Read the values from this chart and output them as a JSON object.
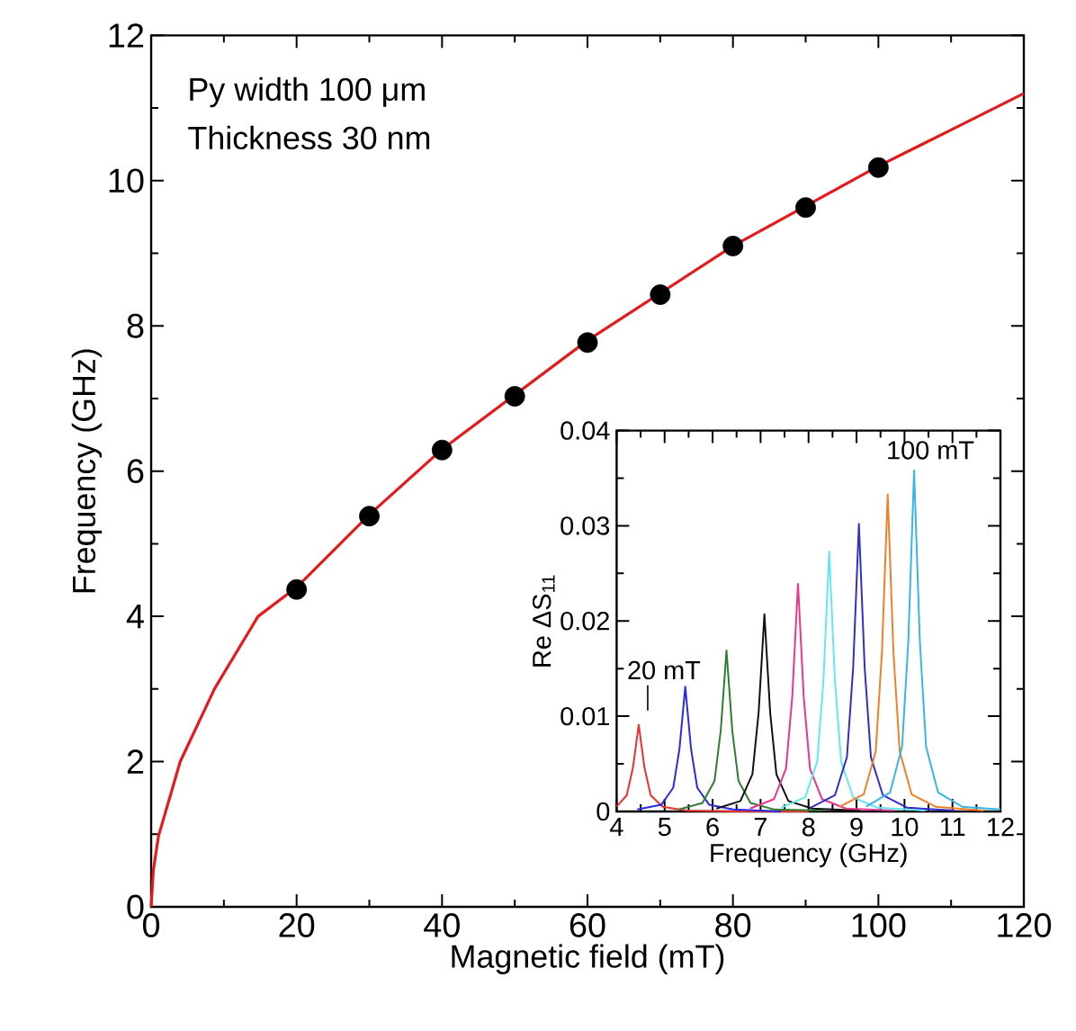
{
  "chart_data": [
    {
      "type": "scatter",
      "xlabel": "Magnetic field (mT)",
      "ylabel": "Frequency (GHz)",
      "xlim": [
        0,
        120
      ],
      "ylim": [
        0,
        12
      ],
      "xticks": [
        0,
        20,
        40,
        60,
        80,
        100,
        120
      ],
      "yticks": [
        0,
        2,
        4,
        6,
        8,
        10,
        12
      ],
      "annotations": [
        "Py width 100 μm",
        "Thickness 30 nm"
      ],
      "series": [
        {
          "type": "line",
          "color": "#e41a1c",
          "line_style": "solid",
          "marker": "none",
          "x": [
            0,
            0.3,
            1,
            4,
            8.7,
            14.7,
            20,
            30,
            40,
            50,
            60,
            80,
            100,
            110,
            120
          ],
          "values": [
            0,
            0.5,
            0.97,
            2.0,
            3.0,
            4.0,
            4.4,
            5.4,
            6.3,
            7.05,
            7.8,
            9.1,
            10.2,
            10.7,
            11.2
          ]
        },
        {
          "type": "scatter",
          "color": "#000000",
          "marker": "circle",
          "x": [
            20,
            30,
            40,
            50,
            60,
            70,
            80,
            90,
            100
          ],
          "values": [
            4.37,
            5.38,
            6.29,
            7.03,
            7.77,
            8.43,
            9.1,
            9.63,
            10.18
          ]
        }
      ]
    },
    {
      "type": "line",
      "xlabel": "Frequency (GHz)",
      "ylabel": "Re ΔS$_{11}$",
      "xlim": [
        4,
        12
      ],
      "ylim": [
        0,
        0.04
      ],
      "xticks": [
        4,
        5,
        6,
        7,
        8,
        9,
        10,
        11,
        12
      ],
      "yticks": [
        0,
        0.01,
        0.02,
        0.03,
        0.04
      ],
      "annotations": [
        {
          "text": "20 mT",
          "x": 4.46,
          "y": 0.0091
        },
        {
          "text": "100 mT",
          "x": 10.2,
          "y": 0.0358
        }
      ],
      "series": [
        {
          "color": "#e8322d",
          "x": [
            4.0,
            4.21,
            4.34,
            4.46,
            4.58,
            4.71,
            4.96,
            5.46,
            6.46,
            8.0
          ],
          "values": [
            0.0005,
            0.0017,
            0.0046,
            0.0091,
            0.0046,
            0.0017,
            0.0005,
            0.0001,
            0.0,
            0.0
          ]
        },
        {
          "color": "#2a2ae0",
          "x": [
            4.43,
            4.93,
            5.18,
            5.31,
            5.43,
            5.55,
            5.68,
            5.93,
            6.43,
            7.43
          ],
          "values": [
            0.0002,
            0.0007,
            0.0025,
            0.0066,
            0.0131,
            0.0066,
            0.0025,
            0.0007,
            0.0002,
            0.0
          ]
        },
        {
          "color": "#2e7d32",
          "x": [
            5.29,
            5.79,
            6.04,
            6.17,
            6.29,
            6.41,
            6.54,
            6.79,
            7.29,
            8.29
          ],
          "values": [
            0.0002,
            0.0009,
            0.0032,
            0.0085,
            0.0169,
            0.0085,
            0.0032,
            0.0009,
            0.0002,
            0.0001
          ]
        },
        {
          "color": "#111111",
          "x": [
            6.08,
            6.58,
            6.83,
            6.96,
            7.08,
            7.2,
            7.33,
            7.58,
            8.08,
            9.08
          ],
          "values": [
            0.0003,
            0.0011,
            0.0039,
            0.0104,
            0.0207,
            0.0104,
            0.0039,
            0.0011,
            0.0003,
            0.0001
          ]
        },
        {
          "color": "#e8368f",
          "x": [
            6.78,
            7.28,
            7.53,
            7.66,
            7.78,
            7.9,
            8.03,
            8.28,
            8.78,
            9.78
          ],
          "values": [
            0.0003,
            0.0013,
            0.0045,
            0.012,
            0.0239,
            0.012,
            0.0045,
            0.0013,
            0.0003,
            0.0001
          ]
        },
        {
          "color": "#66e6f0",
          "x": [
            7.43,
            7.93,
            8.18,
            8.31,
            8.43,
            8.55,
            8.68,
            8.93,
            9.43,
            10.43
          ],
          "values": [
            0.0004,
            0.0015,
            0.0052,
            0.0137,
            0.0273,
            0.0137,
            0.0052,
            0.0015,
            0.0004,
            0.0001
          ]
        },
        {
          "color": "#3030c8",
          "x": [
            8.05,
            8.55,
            8.8,
            8.93,
            9.05,
            9.17,
            9.3,
            9.55,
            10.05,
            11.05
          ],
          "values": [
            0.0004,
            0.0017,
            0.0057,
            0.0151,
            0.0302,
            0.0151,
            0.0057,
            0.0017,
            0.0004,
            0.0001
          ]
        },
        {
          "color": "#f07f2a",
          "x": [
            8.65,
            9.15,
            9.4,
            9.53,
            9.65,
            9.77,
            9.9,
            10.15,
            10.65,
            11.65
          ],
          "values": [
            0.0005,
            0.0018,
            0.0063,
            0.0167,
            0.0333,
            0.0167,
            0.0063,
            0.0018,
            0.0005,
            0.0001
          ]
        },
        {
          "color": "#3ab4e6",
          "x": [
            9.2,
            9.7,
            9.95,
            10.08,
            10.2,
            10.32,
            10.45,
            10.7,
            11.2,
            12.0
          ],
          "values": [
            0.0005,
            0.002,
            0.0068,
            0.0179,
            0.0358,
            0.0179,
            0.0068,
            0.002,
            0.0005,
            0.0002
          ]
        }
      ]
    }
  ]
}
